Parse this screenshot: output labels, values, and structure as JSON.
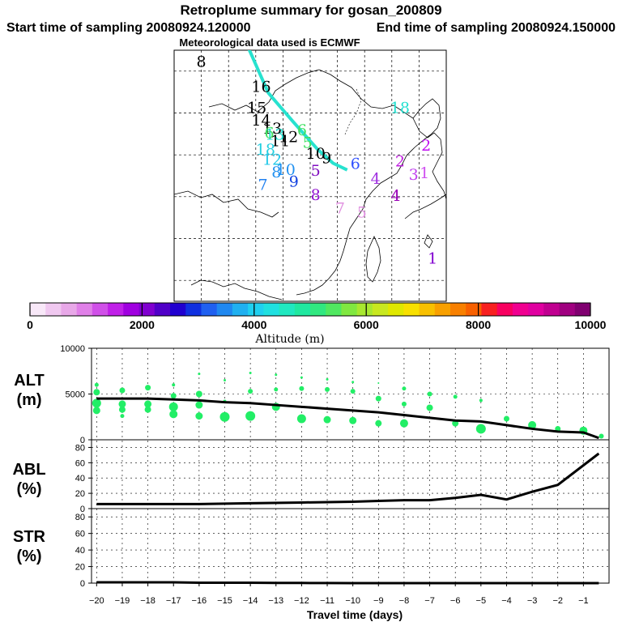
{
  "header": {
    "title": "Retroplume summary for gosan_200809",
    "start_label": "Start time of sampling 20080924.120000",
    "end_label": "End time of sampling 20080924.150000",
    "met_label": "Meteorological data used is ECMWF"
  },
  "colors": {
    "trajectory": "#27e2cf",
    "point_default": "#22ee66",
    "line": "#000000",
    "grid": "#000000"
  },
  "map": {
    "trajectory_path": [
      [
        113.5,
        55.5
      ],
      [
        117.3,
        49.9
      ],
      [
        121.8,
        46.5
      ],
      [
        126.3,
        43.2
      ],
      [
        129.2,
        41.5
      ],
      [
        131.8,
        40.7
      ]
    ],
    "numbers": [
      {
        "label": "8",
        "lon": 105.0,
        "lat": 53.5,
        "color": "#000000"
      },
      {
        "label": "16",
        "lon": 116.0,
        "lat": 50.5,
        "color": "#000000"
      },
      {
        "label": "15",
        "lon": 115.2,
        "lat": 48.0,
        "color": "#000000"
      },
      {
        "label": "14",
        "lon": 116.0,
        "lat": 46.5,
        "color": "#000000"
      },
      {
        "label": "13",
        "lon": 118.0,
        "lat": 45.5,
        "color": "#000000"
      },
      {
        "label": "12",
        "lon": 121.0,
        "lat": 44.5,
        "color": "#000000"
      },
      {
        "label": "11",
        "lon": 119.5,
        "lat": 44.0,
        "color": "#000000"
      },
      {
        "label": "10",
        "lon": 126.0,
        "lat": 42.5,
        "color": "#000000"
      },
      {
        "label": "9",
        "lon": 128.0,
        "lat": 42.0,
        "color": "#000000"
      },
      {
        "label": "18",
        "lon": 141.5,
        "lat": 48.0,
        "color": "#22e0d0"
      },
      {
        "label": "6",
        "lon": 123.5,
        "lat": 45.3,
        "color": "#40e060"
      },
      {
        "label": "5",
        "lon": 124.5,
        "lat": 43.8,
        "color": "#40e060"
      },
      {
        "label": "13",
        "lon": 118.5,
        "lat": 44.8,
        "color": "#22e0d0"
      },
      {
        "label": "6",
        "lon": 117.5,
        "lat": 45.0,
        "color": "#40e060"
      },
      {
        "label": "18",
        "lon": 116.8,
        "lat": 43.0,
        "color": "#22d0e0"
      },
      {
        "label": "12",
        "lon": 118.0,
        "lat": 41.8,
        "color": "#22c8e8"
      },
      {
        "label": "10",
        "lon": 120.5,
        "lat": 40.6,
        "color": "#2090f0"
      },
      {
        "label": "8",
        "lon": 118.8,
        "lat": 40.3,
        "color": "#2090f0"
      },
      {
        "label": "9",
        "lon": 122.0,
        "lat": 39.2,
        "color": "#1040e0"
      },
      {
        "label": "7",
        "lon": 116.3,
        "lat": 38.8,
        "color": "#2080f0"
      },
      {
        "label": "5",
        "lon": 126.0,
        "lat": 40.5,
        "color": "#8010c0"
      },
      {
        "label": "8",
        "lon": 126.0,
        "lat": 37.6,
        "color": "#9010d0"
      },
      {
        "label": "6",
        "lon": 133.3,
        "lat": 41.3,
        "color": "#3050ff"
      },
      {
        "label": "7",
        "lon": 130.5,
        "lat": 36.0,
        "color": "#e090e0"
      },
      {
        "label": "5",
        "lon": 134.5,
        "lat": 35.5,
        "color": "#e090e0"
      },
      {
        "label": "4",
        "lon": 140.7,
        "lat": 37.5,
        "color": "#9a00b8"
      },
      {
        "label": "4",
        "lon": 137.0,
        "lat": 39.5,
        "color": "#a030e0"
      },
      {
        "label": "2",
        "lon": 146.3,
        "lat": 43.5,
        "color": "#c010f0"
      },
      {
        "label": "2",
        "lon": 141.5,
        "lat": 41.6,
        "color": "#c020e0"
      },
      {
        "label": "1",
        "lon": 147.5,
        "lat": 30.0,
        "color": "#8000d0"
      },
      {
        "label": "3",
        "lon": 144.0,
        "lat": 40.0,
        "color": "#c040f0"
      },
      {
        "label": "1",
        "lon": 146.0,
        "lat": 40.2,
        "color": "#d050f0"
      }
    ]
  },
  "colorbar": {
    "ticks": [
      "0",
      "2000",
      "4000",
      "6000",
      "8000",
      "10000"
    ],
    "title": "Altitude (m)",
    "colors": [
      "#f8e8f8",
      "#f0c8f0",
      "#e8a8e8",
      "#e080e8",
      "#d050e8",
      "#c020e8",
      "#a000e0",
      "#8000d0",
      "#5000c8",
      "#2000d0",
      "#1030e0",
      "#2060f0",
      "#2088f0",
      "#20b0f0",
      "#20d0f0",
      "#20e0e0",
      "#20e8c0",
      "#20e8a0",
      "#30e880",
      "#50e860",
      "#80e840",
      "#a8e830",
      "#c8e820",
      "#e0e800",
      "#f8e000",
      "#f8c000",
      "#f8a000",
      "#f88000",
      "#f86000",
      "#f82020",
      "#f80060",
      "#f00090",
      "#e000a0",
      "#c00090",
      "#a00080",
      "#800070"
    ]
  },
  "panels": {
    "alt_label": "ALT",
    "alt_unit": "(m)",
    "abl_label": "ABL",
    "abl_unit": "(%)",
    "str_label": "STR",
    "str_unit": "(%)"
  },
  "chart_data": [
    {
      "type": "scatter",
      "title": "ALT",
      "ylabel": "(m)",
      "xlabel": "Travel time (days)",
      "xlim": [
        -20.2,
        0
      ],
      "ylim": [
        0,
        10000
      ],
      "yticks": [
        "10000",
        "5000",
        "0"
      ],
      "x_ticks": [
        "-20",
        "-19",
        "-18",
        "-17",
        "-16",
        "-15",
        "-14",
        "-13",
        "-12",
        "-11",
        "-10",
        "-9",
        "-8",
        "-7",
        "-6",
        "-5",
        "-4",
        "-3",
        "-2",
        "-1"
      ],
      "series": [
        {
          "name": "mean altitude",
          "x": [
            -20,
            -19,
            -18,
            -17,
            -16,
            -15,
            -14,
            -13,
            -12,
            -11,
            -10,
            -9,
            -8,
            -7,
            -6,
            -5,
            -4,
            -3,
            -2,
            -1,
            -0.4
          ],
          "y": [
            4500,
            4500,
            4500,
            4400,
            4300,
            4100,
            4000,
            3800,
            3600,
            3400,
            3200,
            3000,
            2700,
            2400,
            2100,
            2000,
            1600,
            1200,
            900,
            800,
            200
          ]
        },
        {
          "name": "plume points",
          "x": [
            -20,
            -20,
            -20,
            -20,
            -19,
            -19,
            -19,
            -19,
            -18,
            -18,
            -18,
            -17,
            -17,
            -17,
            -17,
            -16,
            -16,
            -16,
            -16,
            -15,
            -15,
            -15,
            -14,
            -14,
            -14,
            -13,
            -13,
            -13,
            -12,
            -12,
            -12,
            -11,
            -11,
            -11,
            -10,
            -10,
            -10,
            -9,
            -9,
            -9,
            -8,
            -8,
            -8,
            -7,
            -7,
            -6,
            -6,
            -5,
            -5,
            -4,
            -3,
            -2,
            -1,
            -0.3
          ],
          "y": [
            6000,
            5200,
            4000,
            3200,
            5400,
            3900,
            3300,
            2600,
            5700,
            3900,
            3300,
            6000,
            4800,
            3600,
            2800,
            7200,
            5000,
            3800,
            2600,
            6500,
            4200,
            2500,
            7300,
            5300,
            2600,
            7100,
            5500,
            3600,
            6800,
            5600,
            2300,
            6600,
            5500,
            2200,
            6300,
            5300,
            2100,
            6200,
            4500,
            1800,
            5600,
            3900,
            1800,
            5000,
            3500,
            4700,
            1800,
            4300,
            1200,
            2300,
            1600,
            1200,
            1000,
            400
          ],
          "sizes": [
            5,
            8,
            11,
            9,
            7,
            9,
            8,
            5,
            7,
            9,
            8,
            4,
            7,
            11,
            10,
            3,
            8,
            9,
            9,
            3,
            4,
            12,
            3,
            6,
            12,
            3,
            5,
            10,
            3,
            6,
            11,
            3,
            6,
            9,
            3,
            6,
            9,
            2,
            7,
            8,
            5,
            6,
            10,
            6,
            8,
            5,
            8,
            4,
            12,
            7,
            10,
            7,
            10,
            6
          ]
        }
      ]
    },
    {
      "type": "line",
      "title": "ABL",
      "ylabel": "(%)",
      "xlim": [
        -20.2,
        0
      ],
      "ylim": [
        0,
        90
      ],
      "yticks": [
        "80",
        "60",
        "40",
        "20",
        "0"
      ],
      "series": [
        {
          "name": "ABL",
          "x": [
            -20,
            -18,
            -16,
            -14,
            -12,
            -10,
            -9,
            -8,
            -7,
            -6,
            -5,
            -4,
            -3,
            -2,
            -0.4
          ],
          "y": [
            6,
            6,
            6,
            7,
            8,
            9,
            10,
            11,
            11,
            14,
            18,
            12,
            22,
            31,
            72
          ]
        }
      ]
    },
    {
      "type": "line",
      "title": "STR",
      "ylabel": "(%)",
      "xlim": [
        -20.2,
        0
      ],
      "ylim": [
        0,
        90
      ],
      "yticks": [
        "80",
        "60",
        "40",
        "20",
        "0"
      ],
      "series": [
        {
          "name": "STR",
          "x": [
            -20,
            -19,
            -18,
            -17,
            -16,
            -15,
            -14,
            -13,
            -12,
            -11,
            -10,
            -9,
            -8,
            -7,
            -6,
            -5,
            -4,
            -3,
            -2,
            -1,
            -0.4
          ],
          "y": [
            1,
            1,
            1,
            1,
            0.5,
            0.5,
            0.5,
            0.3,
            0.2,
            0.1,
            0,
            0,
            0,
            0,
            0,
            0,
            0,
            0,
            0,
            0,
            0
          ]
        }
      ]
    }
  ]
}
